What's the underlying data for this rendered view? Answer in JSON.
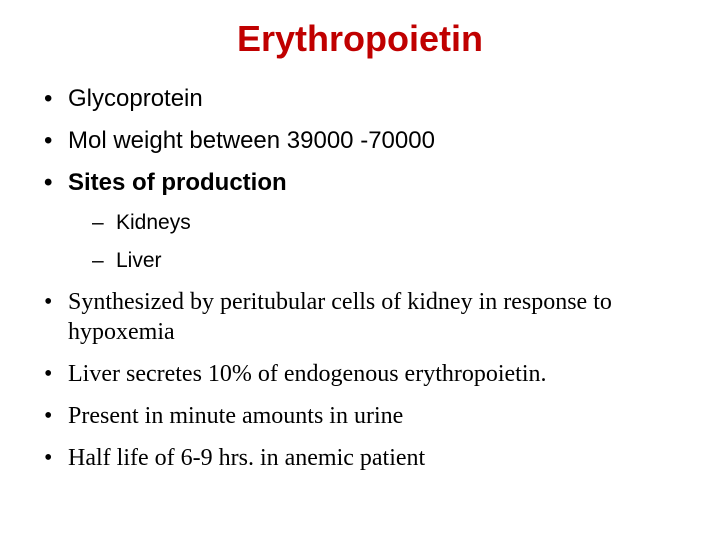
{
  "title": "Erythropoietin",
  "title_color": "#c00000",
  "title_fontsize": 36,
  "body_sans_fontsize": 24,
  "body_serif_fontsize": 24,
  "sub_fontsize": 21,
  "background_color": "#ffffff",
  "text_color": "#000000",
  "bullets": {
    "b1": "Glycoprotein",
    "b2": "Mol weight between 39000 -70000",
    "b3": "Sites of production",
    "b3_sub1": "Kidneys",
    "b3_sub2": "Liver",
    "b4": "Synthesized by peritubular cells of kidney in response to hypoxemia",
    "b5": "Liver secretes 10% of endogenous erythropoietin.",
    "b6": "Present in minute amounts in urine",
    "b7": "Half life of 6-9 hrs. in anemic patient"
  }
}
